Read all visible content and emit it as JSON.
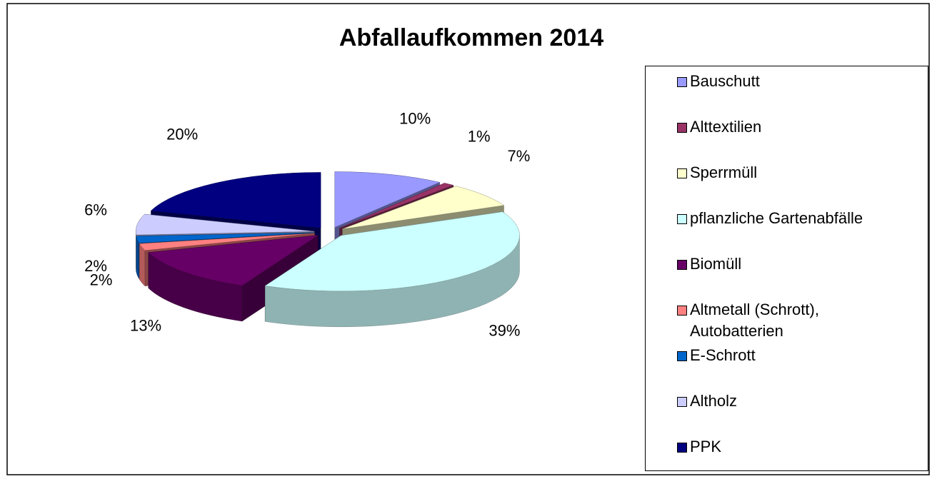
{
  "chart_data": {
    "type": "pie",
    "title": "Abfallaufkommen 2014",
    "categories": [
      "Bauschutt",
      "Alttextilien",
      "Sperrmüll",
      "pflanzliche Gartenabfälle",
      "Biomüll",
      "Altmetall (Schrott), Autobatterien",
      "E-Schrott",
      "Altholz",
      "PPK"
    ],
    "values": [
      10,
      1,
      7,
      39,
      13,
      2,
      2,
      6,
      20
    ],
    "value_labels": [
      "10%",
      "1%",
      "7%",
      "39%",
      "13%",
      "2%",
      "2%",
      "6%",
      "20%"
    ],
    "colors": [
      "#9999ff",
      "#993366",
      "#ffffcc",
      "#ccffff",
      "#660066",
      "#ff8080",
      "#0066cc",
      "#ccccff",
      "#000080"
    ],
    "legend": "right"
  }
}
